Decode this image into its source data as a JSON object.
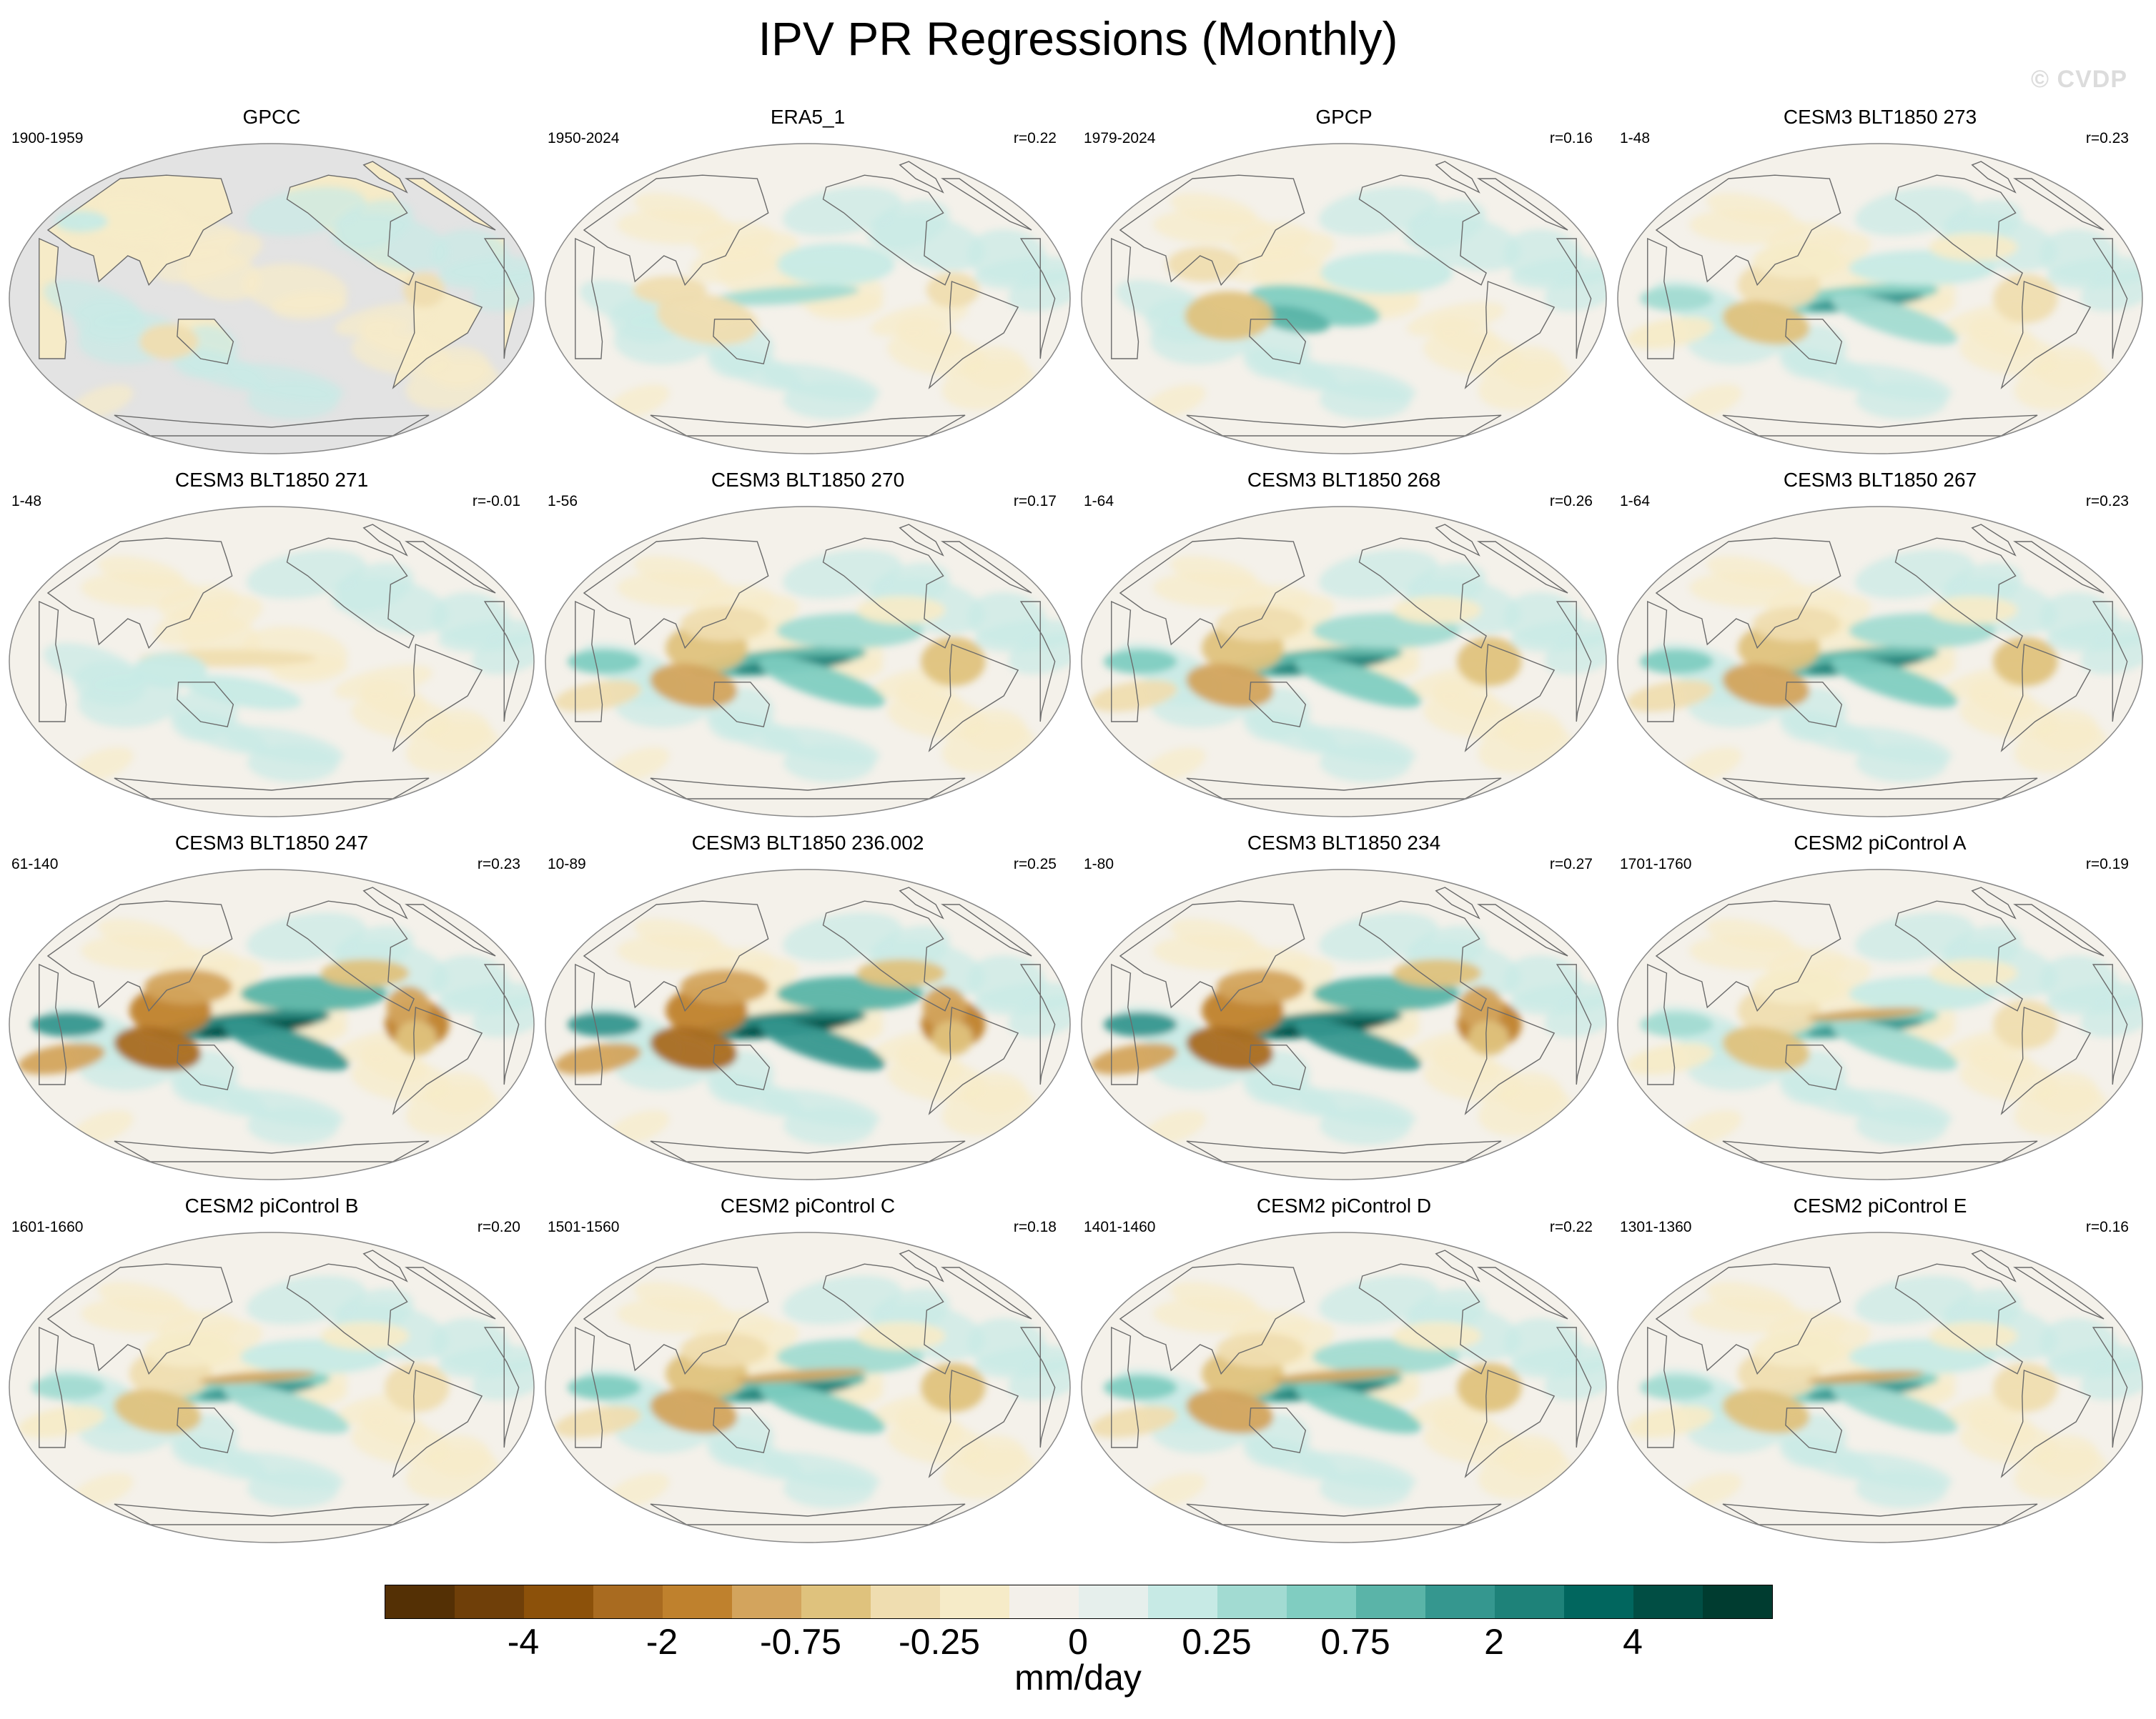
{
  "title": "IPV PR Regressions (Monthly)",
  "watermark": "© CVDP",
  "colors": {
    "land_mask": "#e3e3e3",
    "ocean_base": "#f4f1ea",
    "coast": "#6b6b6b"
  },
  "panels": [
    {
      "title": "GPCC",
      "period": "1900-1959",
      "r": "",
      "masked": true,
      "pattern": "gpcc"
    },
    {
      "title": "ERA5_1",
      "period": "1950-2024",
      "r": "r=0.22",
      "pattern": "obs1"
    },
    {
      "title": "GPCP",
      "period": "1979-2024",
      "r": "r=0.16",
      "pattern": "obs2"
    },
    {
      "title": "CESM3 BLT1850 273",
      "period": "1-48",
      "r": "r=0.23",
      "pattern": "m1"
    },
    {
      "title": "CESM3 BLT1850 271",
      "period": "1-48",
      "r": "r=-0.01",
      "pattern": "m0"
    },
    {
      "title": "CESM3 BLT1850 270",
      "period": "1-56",
      "r": "r=0.17",
      "pattern": "m2"
    },
    {
      "title": "CESM3 BLT1850 268",
      "period": "1-64",
      "r": "r=0.26",
      "pattern": "m2"
    },
    {
      "title": "CESM3 BLT1850 267",
      "period": "1-64",
      "r": "r=0.23",
      "pattern": "m2"
    },
    {
      "title": "CESM3 BLT1850 247",
      "period": "61-140",
      "r": "r=0.23",
      "pattern": "m3"
    },
    {
      "title": "CESM3 BLT1850 236.002",
      "period": "10-89",
      "r": "r=0.25",
      "pattern": "m3"
    },
    {
      "title": "CESM3 BLT1850 234",
      "period": "1-80",
      "r": "r=0.27",
      "pattern": "m3"
    },
    {
      "title": "CESM2 piControl A",
      "period": "1701-1760",
      "r": "r=0.19",
      "pattern": "c1"
    },
    {
      "title": "CESM2 piControl B",
      "period": "1601-1660",
      "r": "r=0.20",
      "pattern": "c1"
    },
    {
      "title": "CESM2 piControl C",
      "period": "1501-1560",
      "r": "r=0.18",
      "pattern": "c2"
    },
    {
      "title": "CESM2 piControl D",
      "period": "1401-1460",
      "r": "r=0.22",
      "pattern": "c2"
    },
    {
      "title": "CESM2 piControl E",
      "period": "1301-1360",
      "r": "r=0.16",
      "pattern": "c1"
    }
  ],
  "colorbar": {
    "colors": [
      "#543005",
      "#6f3f09",
      "#8c510a",
      "#a96b20",
      "#bf812d",
      "#d3a45d",
      "#dfc27d",
      "#efddb0",
      "#f6ebc8",
      "#f3f0ea",
      "#e6efec",
      "#c7eae5",
      "#a2dbd2",
      "#80cdc1",
      "#5ab4a8",
      "#35978f",
      "#1e8279",
      "#01665e",
      "#014e44",
      "#003c30"
    ],
    "labels": [
      "-4",
      "-2",
      "-0.75",
      "-0.25",
      "0",
      "0.25",
      "0.75",
      "2",
      "4"
    ],
    "units": "mm/day"
  }
}
